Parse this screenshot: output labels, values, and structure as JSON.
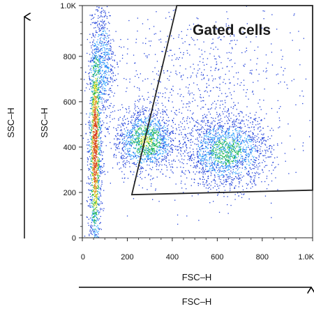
{
  "chart_data": {
    "type": "scatter",
    "subtype": "flow-cytometry-density-dot-plot",
    "title": "",
    "xlabel": "FSC–H",
    "ylabel": "SSC–H",
    "outer_xlabel": "FSC–H",
    "outer_ylabel": "SSC–H",
    "xlim": [
      0,
      1024
    ],
    "ylim": [
      0,
      1024
    ],
    "x_ticks": [
      {
        "value": 0,
        "label": "0"
      },
      {
        "value": 200,
        "label": "200"
      },
      {
        "value": 400,
        "label": "400"
      },
      {
        "value": 600,
        "label": "600"
      },
      {
        "value": 800,
        "label": "800"
      },
      {
        "value": 1024,
        "label": "1.0K"
      }
    ],
    "y_ticks": [
      {
        "value": 0,
        "label": "0"
      },
      {
        "value": 200,
        "label": "200"
      },
      {
        "value": 400,
        "label": "400"
      },
      {
        "value": 600,
        "label": "600"
      },
      {
        "value": 800,
        "label": "800"
      },
      {
        "value": 1024,
        "label": "1.0K"
      }
    ],
    "grid": false,
    "density_colors": [
      "#1f3fd9",
      "#2fa6ff",
      "#19b34a",
      "#d7d92a",
      "#e07a1f",
      "#d42a1a"
    ],
    "populations": [
      {
        "cx": 55,
        "cy": 400,
        "sx": 14,
        "sy": 260,
        "weight": 0.28
      },
      {
        "cx": 95,
        "cy": 780,
        "sx": 22,
        "sy": 130,
        "weight": 0.08
      },
      {
        "cx": 280,
        "cy": 430,
        "sx": 70,
        "sy": 70,
        "weight": 0.22
      },
      {
        "cx": 640,
        "cy": 380,
        "sx": 95,
        "sy": 80,
        "weight": 0.28
      },
      {
        "cx": 500,
        "cy": 650,
        "sx": 230,
        "sy": 200,
        "weight": 0.14
      }
    ],
    "gate": {
      "label": "Gated cells",
      "vertices": [
        [
          220,
          190
        ],
        [
          420,
          1024
        ],
        [
          1024,
          1024
        ],
        [
          1024,
          210
        ]
      ]
    }
  }
}
